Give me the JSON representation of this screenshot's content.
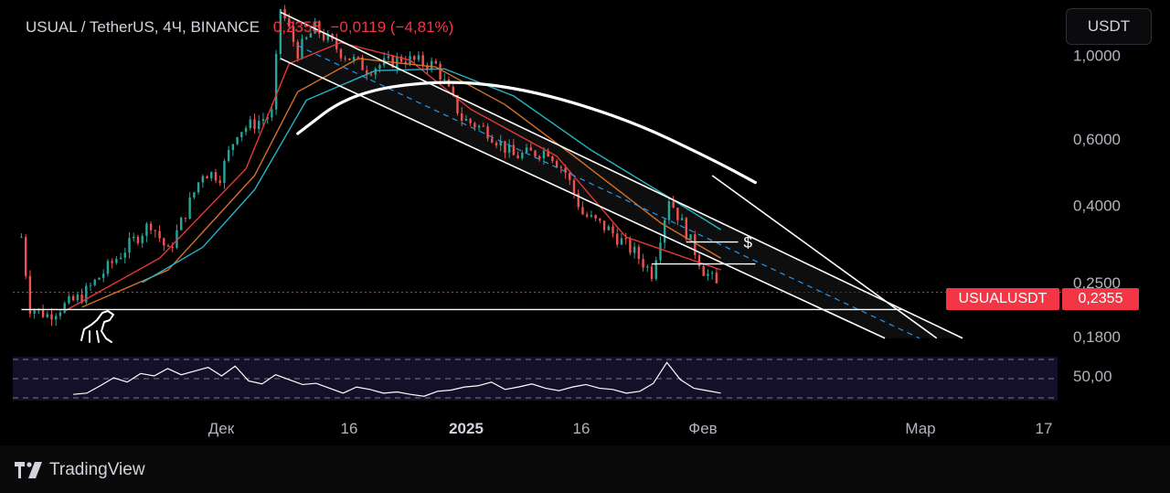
{
  "header": {
    "symbol": "USUAL / TetherUS, 4Ч, BINANCE",
    "price": "0,2355",
    "change": "−0,0119 (−4,81%)"
  },
  "toolbar": {
    "currency_label": "USDT"
  },
  "price_tag": {
    "symbol": "USUALUSDT",
    "value": "0,2355"
  },
  "brand": {
    "name": "TradingView"
  },
  "colors": {
    "up": "#26a69a",
    "down": "#ef5350",
    "price_tag": "#f23645",
    "ma_fast": "#e53935",
    "ma_mid": "#d4712a",
    "ma_slow": "#26b3c4",
    "rsi": "#ffffff"
  },
  "chart_data": {
    "type": "candlestick",
    "symbol": "USUALUSDT",
    "exchange": "BINANCE",
    "timeframe": "4Ч",
    "y_scale": "log",
    "ylim": [
      0.17,
      1.4
    ],
    "y_ticks": [
      "1,0000",
      "0,6000",
      "0,4000",
      "0,2500",
      "0,1800"
    ],
    "x_ticks": [
      "Дек",
      "16",
      "2025",
      "16",
      "Фев",
      "Мар",
      "17"
    ],
    "xlim": [
      "2024-11-18",
      "2025-03-19"
    ],
    "last_price": 0.2355,
    "price_path": [
      [
        "2024-11-19",
        0.33
      ],
      [
        "2024-11-20",
        0.215
      ],
      [
        "2024-11-22",
        0.205
      ],
      [
        "2024-11-26",
        0.23
      ],
      [
        "2024-11-30",
        0.29
      ],
      [
        "2024-12-04",
        0.36
      ],
      [
        "2024-12-06",
        0.3
      ],
      [
        "2024-12-10",
        0.49
      ],
      [
        "2024-12-12",
        0.48
      ],
      [
        "2024-12-14",
        0.63
      ],
      [
        "2024-12-16",
        0.66
      ],
      [
        "2024-12-18",
        0.7
      ],
      [
        "2024-12-19",
        1.33
      ],
      [
        "2024-12-21",
        1.02
      ],
      [
        "2024-12-23",
        1.18
      ],
      [
        "2024-12-26",
        1.02
      ],
      [
        "2024-12-29",
        0.92
      ],
      [
        "2025-01-02",
        0.98
      ],
      [
        "2025-01-06",
        0.94
      ],
      [
        "2025-01-09",
        0.68
      ],
      [
        "2025-01-12",
        0.63
      ],
      [
        "2025-01-15",
        0.54
      ],
      [
        "2025-01-19",
        0.56
      ],
      [
        "2025-01-21",
        0.49
      ],
      [
        "2025-01-23",
        0.38
      ],
      [
        "2025-01-26",
        0.345
      ],
      [
        "2025-01-29",
        0.3
      ],
      [
        "2025-01-31",
        0.265
      ],
      [
        "2025-02-02",
        0.42
      ],
      [
        "2025-02-04",
        0.34
      ],
      [
        "2025-02-06",
        0.27
      ],
      [
        "2025-02-07",
        0.255
      ],
      [
        "2025-02-08",
        0.2355
      ]
    ],
    "moving_averages": [
      {
        "color": "#e53935",
        "points": [
          [
            "2024-11-24",
            0.21
          ],
          [
            "2024-12-05",
            0.29
          ],
          [
            "2024-12-15",
            0.5
          ],
          [
            "2024-12-20",
            0.95
          ],
          [
            "2024-12-26",
            1.08
          ],
          [
            "2025-01-03",
            0.97
          ],
          [
            "2025-01-10",
            0.72
          ],
          [
            "2025-01-20",
            0.54
          ],
          [
            "2025-01-28",
            0.33
          ],
          [
            "2025-02-08",
            0.27
          ]
        ]
      },
      {
        "color": "#d4712a",
        "points": [
          [
            "2024-11-26",
            0.215
          ],
          [
            "2024-12-06",
            0.27
          ],
          [
            "2024-12-16",
            0.48
          ],
          [
            "2024-12-21",
            0.8
          ],
          [
            "2024-12-28",
            0.98
          ],
          [
            "2025-01-06",
            0.93
          ],
          [
            "2025-01-14",
            0.74
          ],
          [
            "2025-01-22",
            0.54
          ],
          [
            "2025-02-01",
            0.36
          ],
          [
            "2025-02-08",
            0.29
          ]
        ]
      },
      {
        "color": "#26b3c4",
        "points": [
          [
            "2024-12-03",
            0.25
          ],
          [
            "2024-12-10",
            0.31
          ],
          [
            "2024-12-16",
            0.44
          ],
          [
            "2024-12-22",
            0.76
          ],
          [
            "2024-12-30",
            0.91
          ],
          [
            "2025-01-07",
            0.92
          ],
          [
            "2025-01-15",
            0.78
          ],
          [
            "2025-01-24",
            0.56
          ],
          [
            "2025-02-02",
            0.42
          ],
          [
            "2025-02-08",
            0.345
          ]
        ]
      }
    ],
    "drawings": [
      {
        "kind": "channel_upper",
        "color": "#ffffff",
        "points": [
          [
            "2024-12-19",
            1.3
          ],
          [
            "2025-03-08",
            0.178
          ]
        ]
      },
      {
        "kind": "channel_lower",
        "color": "#ffffff",
        "points": [
          [
            "2024-12-19",
            0.98
          ],
          [
            "2025-02-27",
            0.178
          ]
        ]
      },
      {
        "kind": "channel_outer",
        "color": "#ffffff",
        "points": [
          [
            "2025-02-07",
            0.48
          ],
          [
            "2025-03-05",
            0.178
          ]
        ]
      },
      {
        "kind": "channel_mid",
        "style": "dashed",
        "color": "#2196f3",
        "points": [
          [
            "2024-12-21",
            1.06
          ],
          [
            "2025-03-03",
            0.178
          ]
        ]
      },
      {
        "kind": "arc",
        "color": "#ffffff",
        "points": [
          [
            "2024-12-21",
            0.62
          ],
          [
            "2024-12-27",
            0.79
          ],
          [
            "2025-01-06",
            0.86
          ],
          [
            "2025-01-16",
            0.82
          ],
          [
            "2025-01-28",
            0.68
          ],
          [
            "2025-02-07",
            0.53
          ],
          [
            "2025-02-12",
            0.46
          ]
        ]
      },
      {
        "kind": "horizontal",
        "color": "#ffffff",
        "value": 0.212,
        "from": "2024-11-19",
        "to": "2025-03-01"
      },
      {
        "kind": "horizontal",
        "color": "#ffffff",
        "value": 0.28,
        "from": "2025-01-31",
        "to": "2025-02-12"
      },
      {
        "kind": "horizontal",
        "color": "#ffffff",
        "value": 0.32,
        "from": "2025-02-04",
        "to": "2025-02-10",
        "label": "$"
      }
    ],
    "rsi": {
      "tick": "50,00",
      "values": [
        28,
        30,
        42,
        55,
        48,
        62,
        58,
        70,
        60,
        66,
        72,
        58,
        74,
        50,
        45,
        60,
        52,
        44,
        46,
        38,
        30,
        40,
        36,
        30,
        32,
        28,
        25,
        33,
        35,
        40,
        42,
        48,
        36,
        40,
        45,
        38,
        34,
        40,
        44,
        38,
        36,
        30,
        33,
        46,
        80,
        52,
        38,
        34,
        30
      ]
    }
  }
}
